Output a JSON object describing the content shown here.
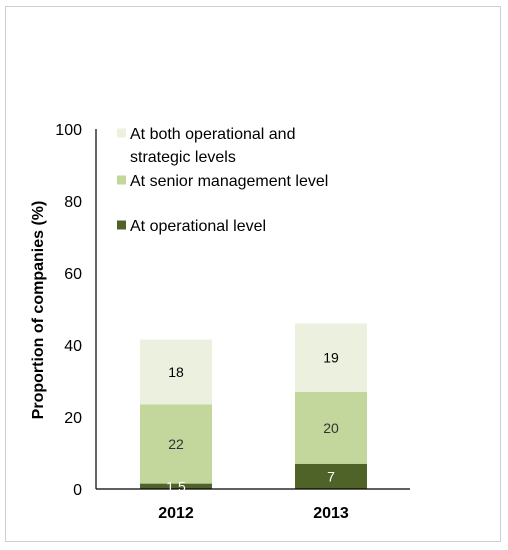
{
  "chart_data": {
    "type": "bar",
    "stacked": true,
    "categories": [
      "2012",
      "2013"
    ],
    "series": [
      {
        "name": "At operational level",
        "values": [
          1.5,
          7
        ],
        "labels": [
          "1.5",
          "7"
        ],
        "color": "#4f6228",
        "label_color": "#ffffff"
      },
      {
        "name": "At senior management level",
        "values": [
          22,
          20
        ],
        "labels": [
          "22",
          "20"
        ],
        "color": "#c3d69b",
        "label_color": "#333333"
      },
      {
        "name": "At both operational and strategic levels",
        "values": [
          18,
          19
        ],
        "labels": [
          "18",
          "19"
        ],
        "color": "#ebf1de",
        "label_color": "#000000"
      }
    ],
    "legend": [
      {
        "lines": [
          "At both operational and",
          "strategic levels"
        ],
        "color": "#ebf1de"
      },
      {
        "lines": [
          "At senior management level"
        ],
        "color": "#c3d69b"
      },
      {
        "lines": [
          "At operational level"
        ],
        "color": "#4f6228"
      }
    ],
    "ylabel": "Proportion of companies (%)",
    "ylim": [
      0,
      100
    ],
    "yticks": [
      0,
      20,
      40,
      60,
      80,
      100
    ],
    "legend_position": "top",
    "grid": false
  }
}
